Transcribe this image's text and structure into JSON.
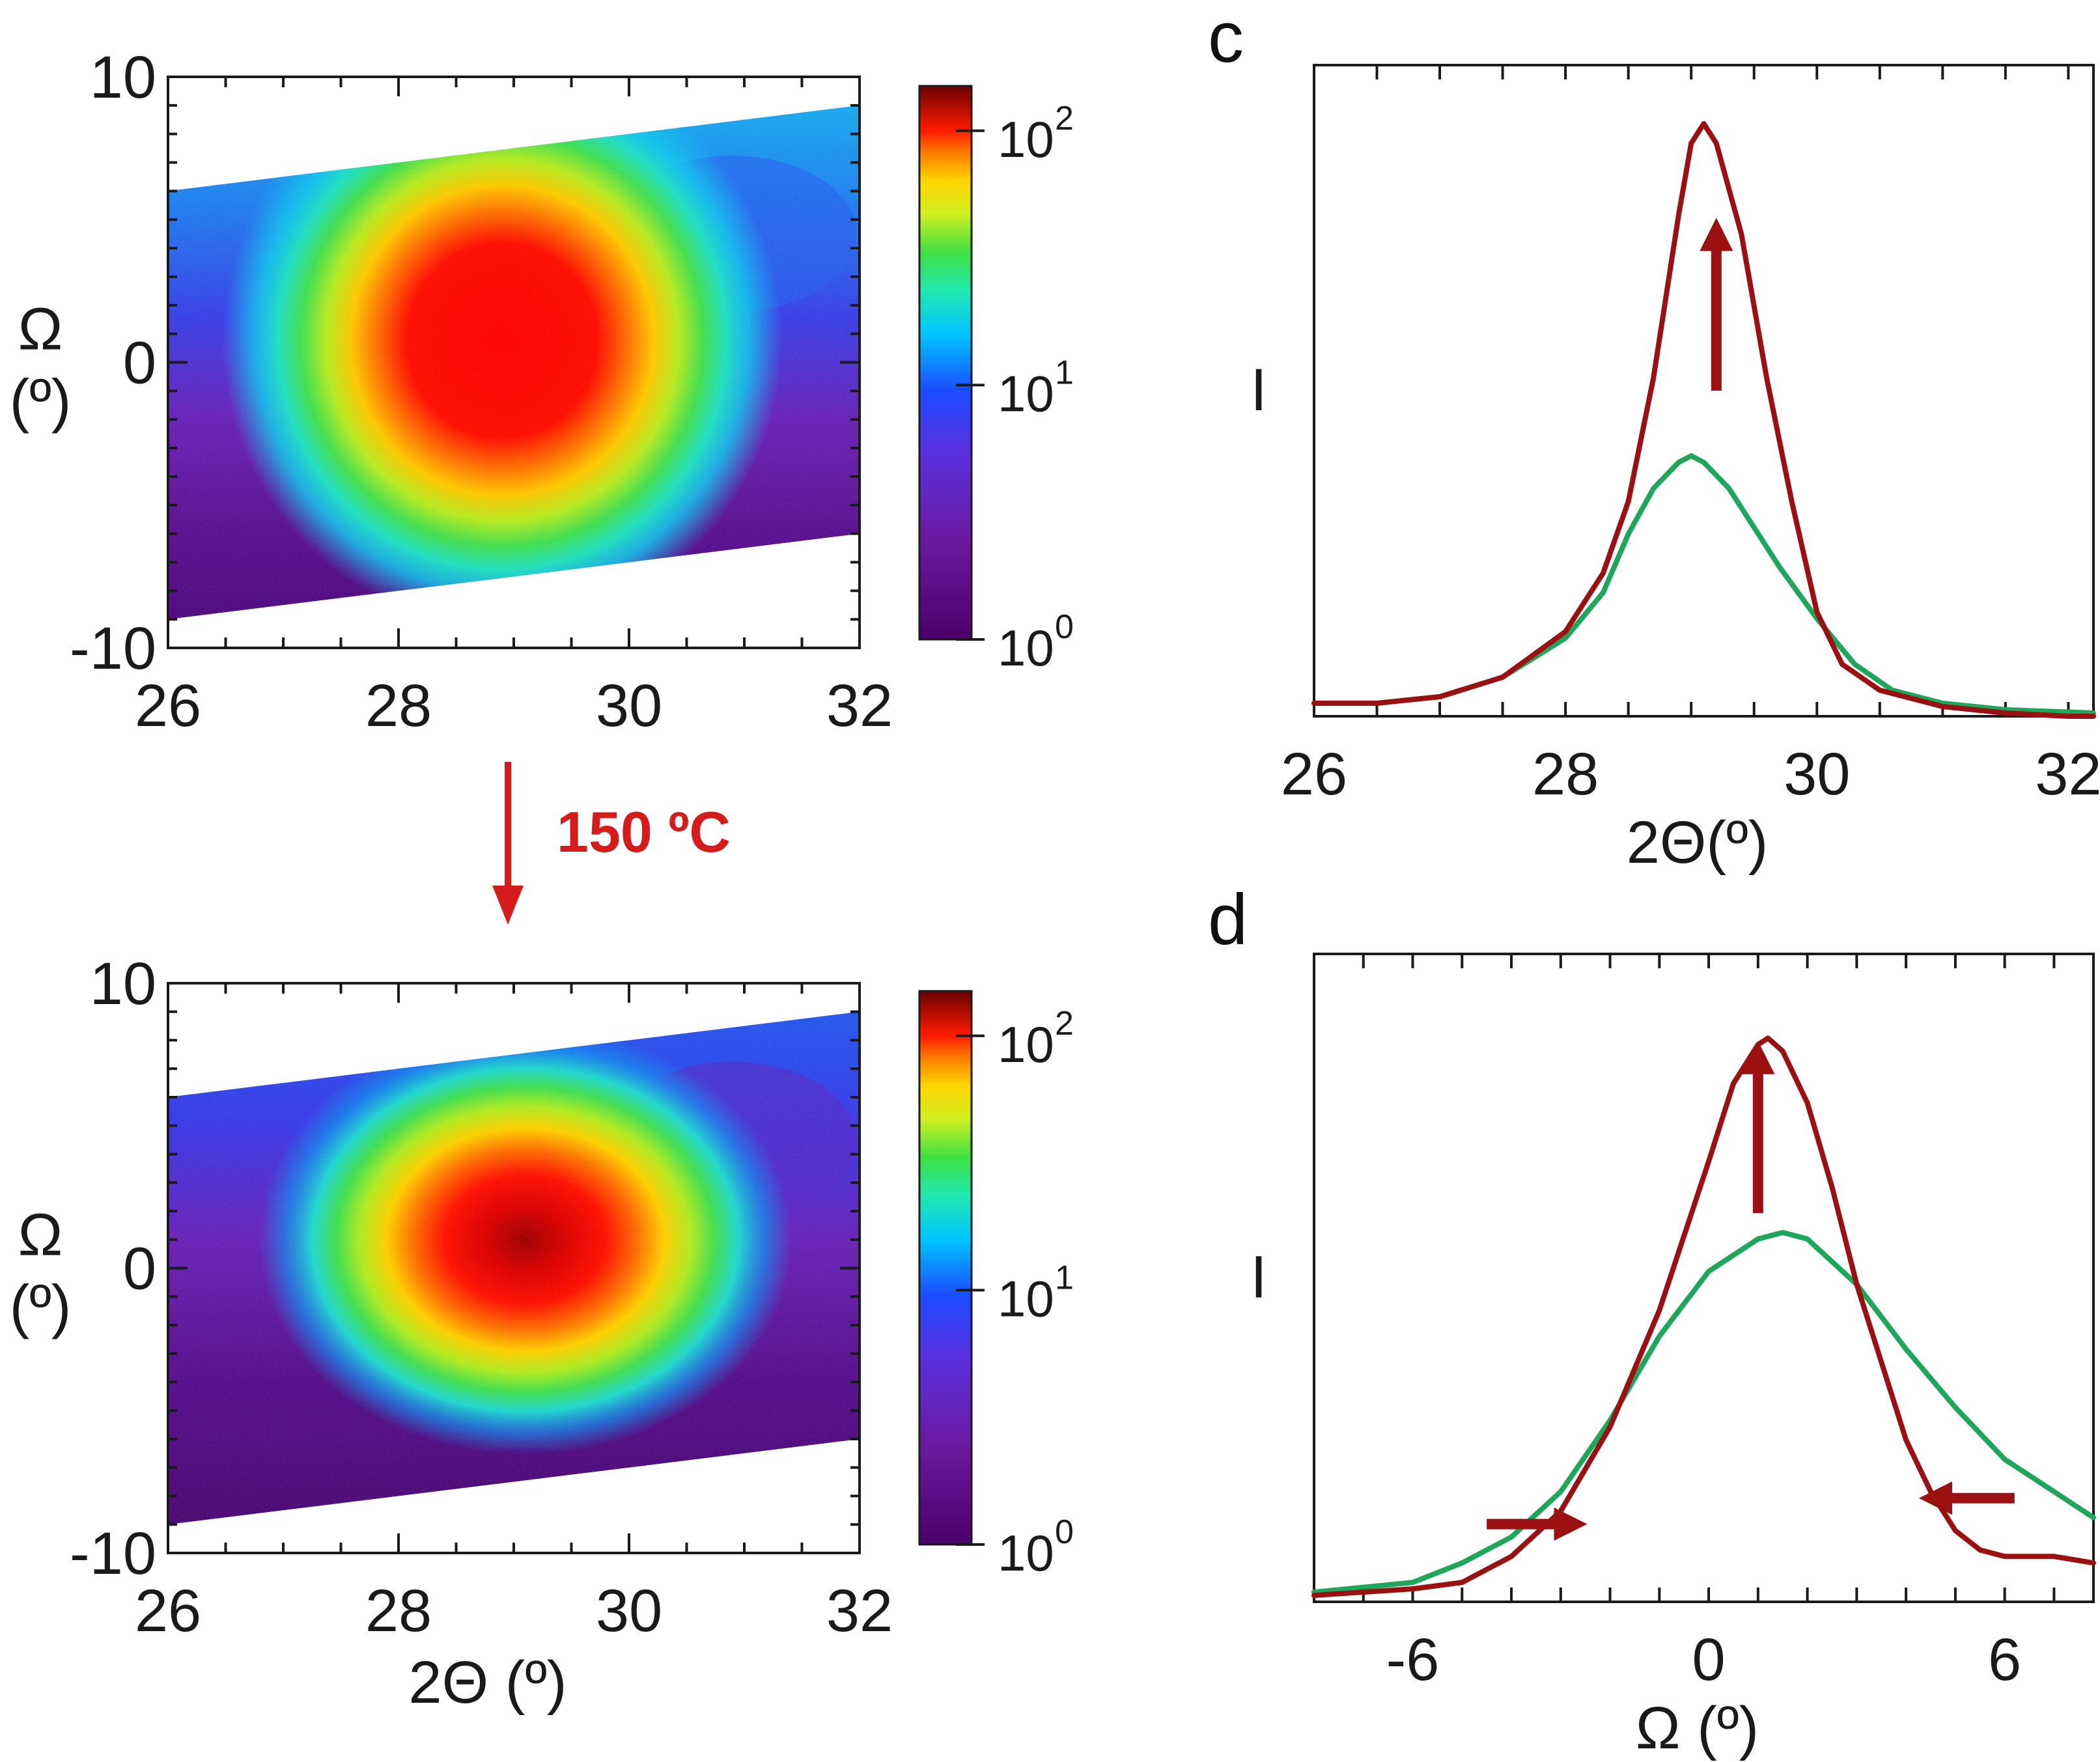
{
  "figure": {
    "panel_letters": {
      "c": "c",
      "d": "d"
    },
    "annealing_label": "150 ºC",
    "colors": {
      "red_curve": "#9b1111",
      "green_curve": "#1ea75a",
      "annealing_arrow": "#d51b1b",
      "axis": "#1a1a1a"
    }
  },
  "chart_data": [
    {
      "id": "map_before",
      "type": "heatmap",
      "xlabel": "",
      "ylabel": "Ω (º)",
      "xlim": [
        26,
        32
      ],
      "ylim": [
        -10,
        10
      ],
      "xticks": [
        "26",
        "28",
        "30",
        "32"
      ],
      "yticks": [
        "10",
        "0",
        "-10"
      ],
      "data_region_parallelogram": {
        "x_range": [
          26,
          32
        ],
        "lower_edge_y": [
          -9,
          -6
        ],
        "upper_edge_y": [
          6,
          9
        ]
      },
      "peak": {
        "x": 28.9,
        "y": 1.0,
        "intensity": 100
      },
      "colorbar": {
        "scale": "log",
        "range": [
          1,
          150
        ],
        "ticks": [
          {
            "base": "10",
            "exp": "2"
          },
          {
            "base": "10",
            "exp": "1"
          },
          {
            "base": "10",
            "exp": "0"
          }
        ]
      }
    },
    {
      "id": "map_after",
      "type": "heatmap",
      "xlabel": "2Θ (º)",
      "ylabel": "Ω (º)",
      "xlim": [
        26,
        32
      ],
      "ylim": [
        -10,
        10
      ],
      "xticks": [
        "26",
        "28",
        "30",
        "32"
      ],
      "yticks": [
        "10",
        "0",
        "-10"
      ],
      "data_region_parallelogram": {
        "x_range": [
          26,
          32
        ],
        "lower_edge_y": [
          -9,
          -6
        ],
        "upper_edge_y": [
          6,
          9
        ]
      },
      "peak": {
        "x": 29.1,
        "y": 1.0,
        "intensity": 150
      },
      "colorbar": {
        "scale": "log",
        "range": [
          1,
          150
        ],
        "ticks": [
          {
            "base": "10",
            "exp": "2"
          },
          {
            "base": "10",
            "exp": "1"
          },
          {
            "base": "10",
            "exp": "0"
          }
        ]
      }
    },
    {
      "id": "panel_c",
      "type": "line",
      "title": "c",
      "xlabel": "2Θ(º)",
      "ylabel": "I",
      "xlim": [
        26,
        32.2
      ],
      "ylim": [
        0,
        1.0
      ],
      "xticks": [
        "26",
        "28",
        "30",
        "32"
      ],
      "series": [
        {
          "color": "red",
          "x": [
            26,
            26.5,
            27,
            27.5,
            28,
            28.3,
            28.5,
            28.7,
            28.9,
            29.0,
            29.1,
            29.2,
            29.4,
            29.6,
            29.8,
            30.0,
            30.2,
            30.5,
            31,
            31.5,
            32,
            32.2
          ],
          "y": [
            0.02,
            0.02,
            0.03,
            0.06,
            0.13,
            0.22,
            0.33,
            0.52,
            0.77,
            0.88,
            0.91,
            0.88,
            0.74,
            0.52,
            0.33,
            0.16,
            0.08,
            0.04,
            0.015,
            0.005,
            0.0,
            0.0
          ]
        },
        {
          "color": "green",
          "x": [
            26,
            26.5,
            27,
            27.5,
            28,
            28.3,
            28.5,
            28.7,
            28.9,
            29.0,
            29.1,
            29.3,
            29.5,
            29.7,
            30.0,
            30.3,
            30.6,
            31,
            31.5,
            32.2
          ],
          "y": [
            0.02,
            0.02,
            0.03,
            0.06,
            0.12,
            0.19,
            0.28,
            0.35,
            0.39,
            0.4,
            0.39,
            0.35,
            0.29,
            0.23,
            0.15,
            0.08,
            0.04,
            0.02,
            0.01,
            0.005
          ]
        }
      ],
      "annotations": [
        {
          "type": "arrow",
          "direction": "up",
          "x": 29.2,
          "y_from": 0.5,
          "y_to": 0.74
        }
      ]
    },
    {
      "id": "panel_d",
      "type": "line",
      "title": "d",
      "xlabel": "Ω (º)",
      "ylabel": "I",
      "xlim": [
        -8,
        7.8
      ],
      "ylim": [
        0,
        1.0
      ],
      "xticks": [
        "-6",
        "0",
        "6"
      ],
      "series": [
        {
          "color": "red",
          "x": [
            -8,
            -6,
            -5,
            -4,
            -3,
            -2,
            -1,
            0,
            0.5,
            1,
            1.2,
            1.5,
            2,
            2.5,
            3,
            4,
            4.5,
            5,
            5.5,
            6,
            7,
            7.8
          ],
          "y": [
            0.01,
            0.02,
            0.03,
            0.07,
            0.14,
            0.27,
            0.45,
            0.68,
            0.8,
            0.86,
            0.87,
            0.85,
            0.77,
            0.64,
            0.49,
            0.25,
            0.17,
            0.11,
            0.08,
            0.07,
            0.07,
            0.06
          ]
        },
        {
          "color": "green",
          "x": [
            -8,
            -6,
            -5,
            -4,
            -3,
            -2,
            -1,
            0,
            1,
            1.5,
            2,
            3,
            4,
            5,
            6,
            7,
            7.8
          ],
          "y": [
            0.015,
            0.03,
            0.06,
            0.1,
            0.17,
            0.28,
            0.41,
            0.51,
            0.56,
            0.57,
            0.56,
            0.49,
            0.39,
            0.3,
            0.22,
            0.17,
            0.13
          ]
        }
      ],
      "annotations": [
        {
          "type": "arrow",
          "direction": "up",
          "x": 1.0,
          "y_from": 0.6,
          "y_to": 0.84
        },
        {
          "type": "arrow",
          "direction": "right",
          "y": 0.12,
          "x_from": -4.5,
          "x_to": -2.8
        },
        {
          "type": "arrow",
          "direction": "left",
          "y": 0.16,
          "x_from": 6.2,
          "x_to": 4.6
        }
      ]
    }
  ]
}
